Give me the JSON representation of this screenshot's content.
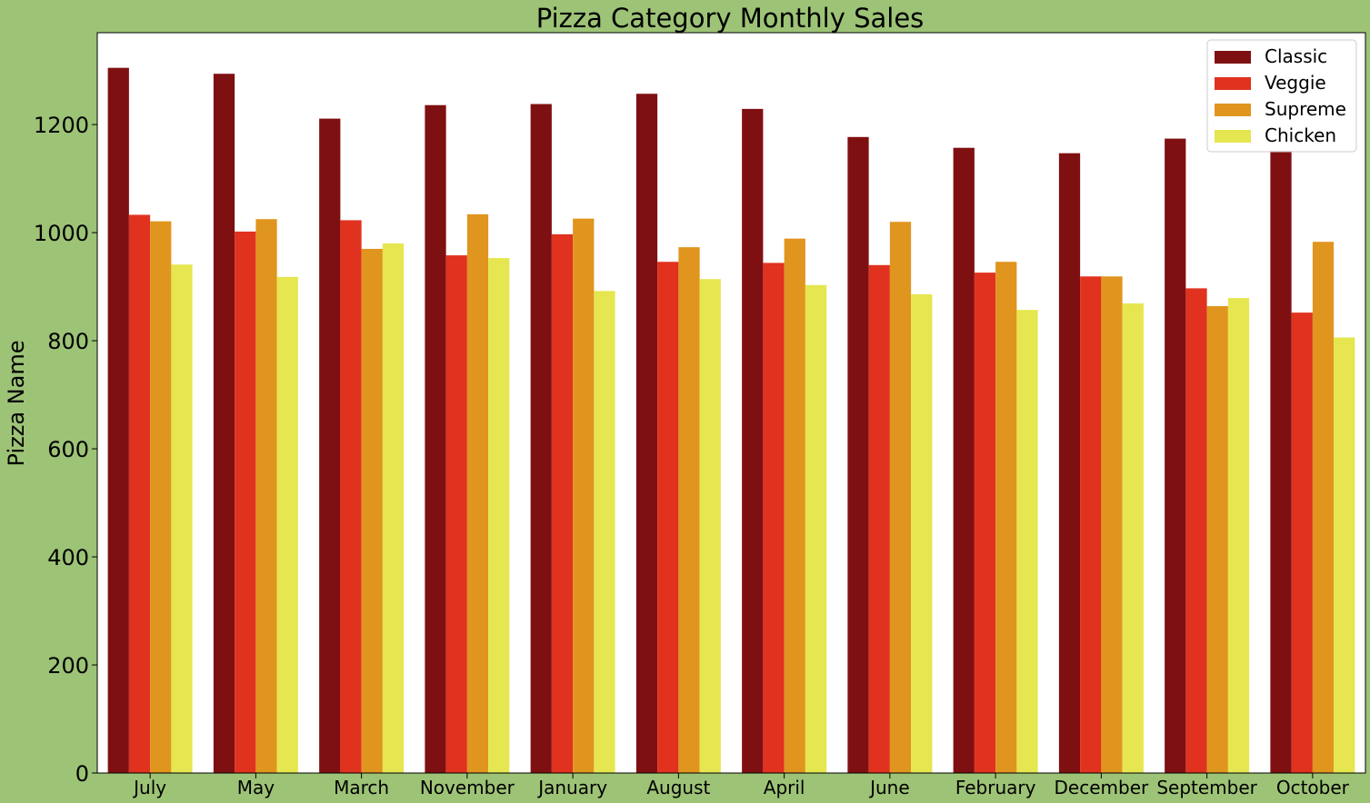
{
  "chart_data": {
    "type": "bar",
    "title": "Pizza Category Monthly Sales",
    "xlabel": "",
    "ylabel": "Pizza Name",
    "categories": [
      "July",
      "May",
      "March",
      "November",
      "January",
      "August",
      "April",
      "June",
      "February",
      "December",
      "September",
      "October"
    ],
    "series": [
      {
        "name": "Classic",
        "color": "#7f1012",
        "values": [
          1305,
          1294,
          1211,
          1236,
          1238,
          1257,
          1229,
          1177,
          1157,
          1147,
          1174,
          1152
        ]
      },
      {
        "name": "Veggie",
        "color": "#e0321f",
        "values": [
          1033,
          1002,
          1023,
          958,
          997,
          946,
          944,
          940,
          926,
          919,
          897,
          852
        ]
      },
      {
        "name": "Supreme",
        "color": "#e0951f",
        "values": [
          1021,
          1025,
          970,
          1034,
          1026,
          973,
          989,
          1020,
          946,
          919,
          864,
          983
        ]
      },
      {
        "name": "Chicken",
        "color": "#e6e650",
        "values": [
          941,
          918,
          980,
          953,
          892,
          914,
          903,
          886,
          857,
          869,
          879,
          806
        ]
      }
    ],
    "ylim": [
      0,
      1370
    ],
    "yticks": [
      0,
      200,
      400,
      600,
      800,
      1000,
      1200
    ],
    "grid": false,
    "legend_position": "top-right"
  }
}
